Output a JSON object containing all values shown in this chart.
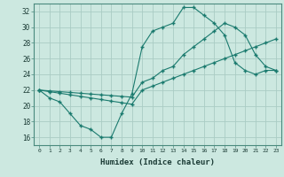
{
  "title": "",
  "xlabel": "Humidex (Indice chaleur)",
  "ylabel": "",
  "background_color": "#cce8e0",
  "line_color": "#1a7a6e",
  "grid_color": "#aaccc4",
  "xlim": [
    -0.5,
    23.5
  ],
  "ylim": [
    15,
    33
  ],
  "yticks": [
    16,
    18,
    20,
    22,
    24,
    26,
    28,
    30,
    32
  ],
  "xticks": [
    0,
    1,
    2,
    3,
    4,
    5,
    6,
    7,
    8,
    9,
    10,
    11,
    12,
    13,
    14,
    15,
    16,
    17,
    18,
    19,
    20,
    21,
    22,
    23
  ],
  "series1_x": [
    0,
    1,
    2,
    3,
    4,
    5,
    6,
    7,
    8,
    9,
    10,
    11,
    12,
    13,
    14,
    15,
    16,
    17,
    18,
    19,
    20,
    21,
    22,
    23
  ],
  "series1_y": [
    22.0,
    21.0,
    20.5,
    19.0,
    17.5,
    17.0,
    16.0,
    16.0,
    19.0,
    21.5,
    27.5,
    29.5,
    30.0,
    30.5,
    32.5,
    32.5,
    31.5,
    30.5,
    29.0,
    25.5,
    24.5,
    24.0,
    24.5,
    24.5
  ],
  "series2_x": [
    0,
    1,
    2,
    3,
    4,
    5,
    6,
    7,
    8,
    9,
    10,
    11,
    12,
    13,
    14,
    15,
    16,
    17,
    18,
    19,
    20,
    21,
    22,
    23
  ],
  "series2_y": [
    22.0,
    21.8,
    21.6,
    21.4,
    21.2,
    21.0,
    20.8,
    20.6,
    20.4,
    20.2,
    22.0,
    22.5,
    23.0,
    23.5,
    24.0,
    24.5,
    25.0,
    25.5,
    26.0,
    26.5,
    27.0,
    27.5,
    28.0,
    28.5
  ],
  "series3_x": [
    0,
    1,
    2,
    3,
    4,
    5,
    6,
    7,
    8,
    9,
    10,
    11,
    12,
    13,
    14,
    15,
    16,
    17,
    18,
    19,
    20,
    21,
    22,
    23
  ],
  "series3_y": [
    22.0,
    21.9,
    21.8,
    21.7,
    21.6,
    21.5,
    21.4,
    21.3,
    21.2,
    21.1,
    23.0,
    23.5,
    24.5,
    25.0,
    26.5,
    27.5,
    28.5,
    29.5,
    30.5,
    30.0,
    29.0,
    26.5,
    25.0,
    24.5
  ]
}
